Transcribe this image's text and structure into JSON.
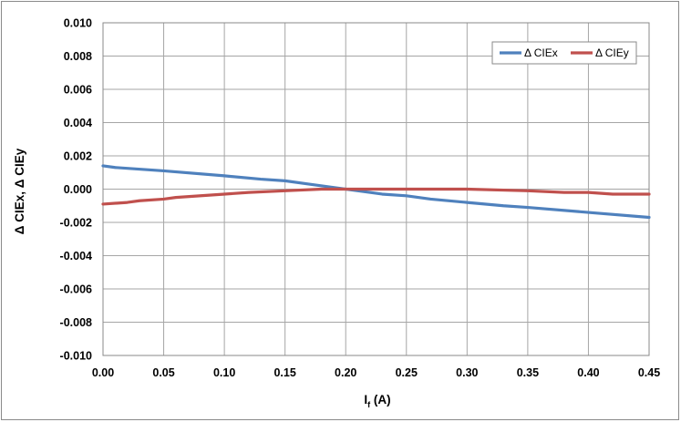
{
  "chart_data": {
    "type": "line",
    "title": "",
    "xlabel": "I",
    "xlabel_sub": "f",
    "xlabel_suffix": " (A)",
    "ylabel": "Δ CIEx, Δ CIEy",
    "xlim": [
      0,
      0.45
    ],
    "ylim": [
      -0.01,
      0.01
    ],
    "x_ticks": [
      "0.00",
      "0.05",
      "0.10",
      "0.15",
      "0.20",
      "0.25",
      "0.30",
      "0.35",
      "0.40",
      "0.45"
    ],
    "y_ticks": [
      "0.010",
      "0.008",
      "0.006",
      "0.004",
      "0.002",
      "0.000",
      "-0.002",
      "-0.004",
      "-0.006",
      "-0.008",
      "-0.010"
    ],
    "grid": true,
    "legend_position": "top-right",
    "series": [
      {
        "name": "Δ CIEx",
        "color": "#4f81bd",
        "x": [
          0.0,
          0.01,
          0.05,
          0.1,
          0.13,
          0.15,
          0.17,
          0.19,
          0.21,
          0.23,
          0.25,
          0.27,
          0.3,
          0.33,
          0.35,
          0.4,
          0.45
        ],
        "y": [
          0.0014,
          0.0013,
          0.0011,
          0.0008,
          0.0006,
          0.0005,
          0.0003,
          0.0001,
          -0.0001,
          -0.0003,
          -0.0004,
          -0.0006,
          -0.0008,
          -0.001,
          -0.0011,
          -0.0014,
          -0.0017
        ]
      },
      {
        "name": "Δ CIEy",
        "color": "#c0504d",
        "x": [
          0.0,
          0.02,
          0.03,
          0.05,
          0.06,
          0.1,
          0.12,
          0.15,
          0.18,
          0.2,
          0.25,
          0.3,
          0.35,
          0.38,
          0.4,
          0.42,
          0.45
        ],
        "y": [
          -0.0009,
          -0.0008,
          -0.0007,
          -0.0006,
          -0.0005,
          -0.0003,
          -0.0002,
          -0.0001,
          0.0,
          0.0,
          0.0,
          0.0,
          -0.0001,
          -0.0002,
          -0.0002,
          -0.0003,
          -0.0003
        ]
      }
    ]
  }
}
